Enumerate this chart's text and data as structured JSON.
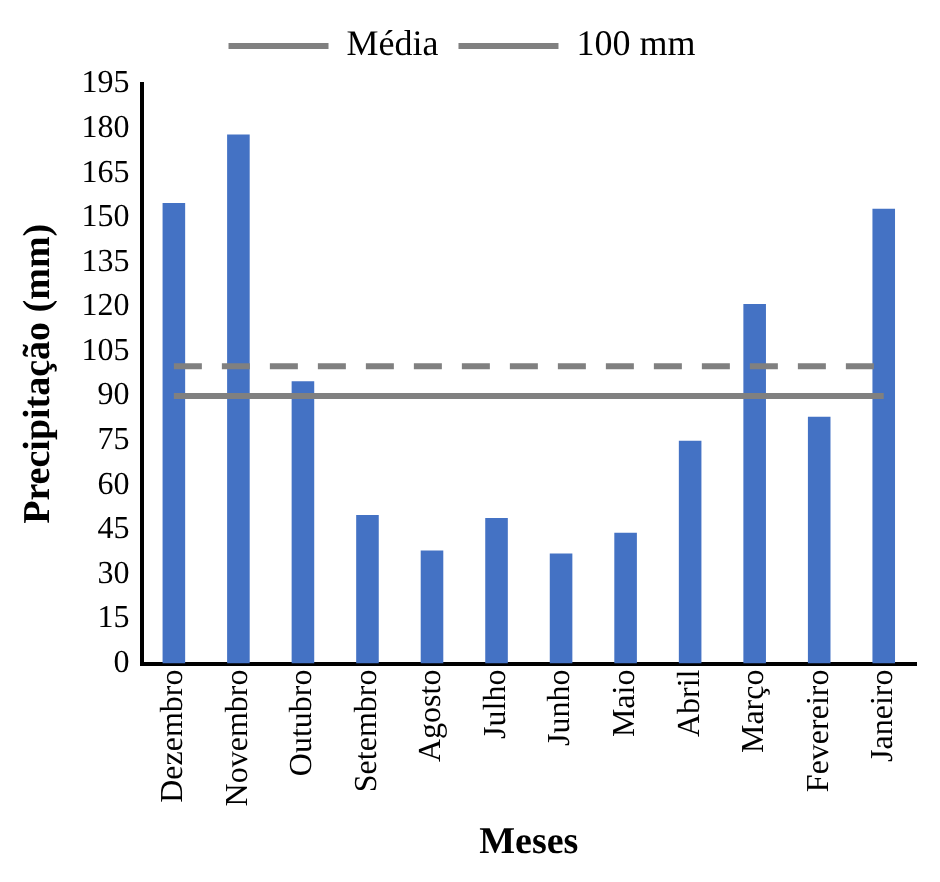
{
  "chart_data": {
    "type": "bar",
    "xlabel": "Meses",
    "ylabel": "Precipitação (mm)",
    "categories": [
      "Dezembro",
      "Novembro",
      "Outubro",
      "Setembro",
      "Agosto",
      "Julho",
      "Junho",
      "Maio",
      "Abril",
      "Março",
      "Fevereiro",
      "Janeiro"
    ],
    "values": [
      155,
      178,
      95,
      50,
      38,
      49,
      37,
      44,
      75,
      121,
      83,
      153
    ],
    "color": "#4472c4",
    "ylim": [
      0,
      195
    ],
    "yticks": [
      0,
      15,
      30,
      45,
      60,
      75,
      90,
      105,
      120,
      135,
      150,
      165,
      180,
      195
    ],
    "ref_lines": [
      {
        "axis": "y",
        "value": 90,
        "label": "Média",
        "color": "#808080",
        "line_style": "solid"
      },
      {
        "axis": "y",
        "value": 100,
        "label": "100 mm",
        "color": "#808080",
        "line_style": "dashed"
      }
    ],
    "grid": false,
    "legend": "top"
  }
}
